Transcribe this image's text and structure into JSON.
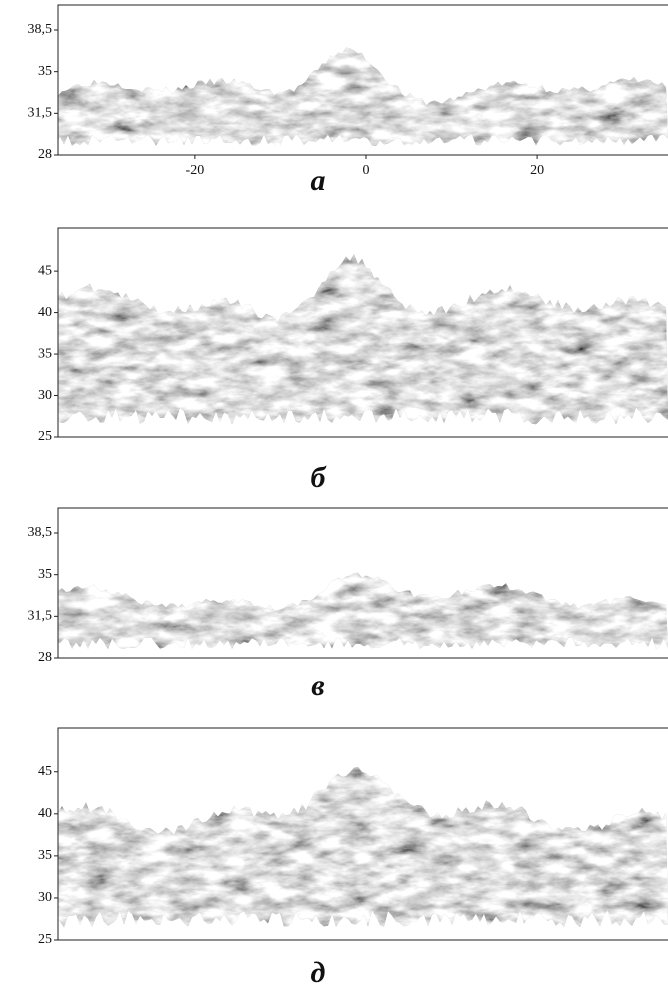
{
  "panels": [
    {
      "label": "а",
      "ylim": [
        28,
        40.6
      ],
      "yticks": [
        {
          "value": 28,
          "label": "28"
        },
        {
          "value": 31.5,
          "label": "31,5"
        },
        {
          "value": 35,
          "label": "35"
        },
        {
          "value": 38.5,
          "label": "38,5"
        }
      ],
      "xlim": [
        -36,
        35.3
      ],
      "xticks": [
        {
          "value": -20,
          "label": "-20"
        },
        {
          "value": 0,
          "label": "0"
        },
        {
          "value": 20,
          "label": "20"
        }
      ]
    },
    {
      "label": "б",
      "ylim": [
        25,
        50.2
      ],
      "yticks": [
        {
          "value": 25,
          "label": "25"
        },
        {
          "value": 30,
          "label": "30"
        },
        {
          "value": 35,
          "label": "35"
        },
        {
          "value": 40,
          "label": "40"
        },
        {
          "value": 45,
          "label": "45"
        }
      ]
    },
    {
      "label": "в",
      "ylim": [
        28,
        40.6
      ],
      "yticks": [
        {
          "value": 28,
          "label": "28"
        },
        {
          "value": 31.5,
          "label": "31,5"
        },
        {
          "value": 35,
          "label": "35"
        },
        {
          "value": 38.5,
          "label": "38,5"
        }
      ]
    },
    {
      "label": "д",
      "ylim": [
        25,
        50.2
      ],
      "yticks": [
        {
          "value": 25,
          "label": "25"
        },
        {
          "value": 30,
          "label": "30"
        },
        {
          "value": 35,
          "label": "35"
        },
        {
          "value": 40,
          "label": "40"
        },
        {
          "value": 45,
          "label": "45"
        }
      ]
    }
  ]
}
